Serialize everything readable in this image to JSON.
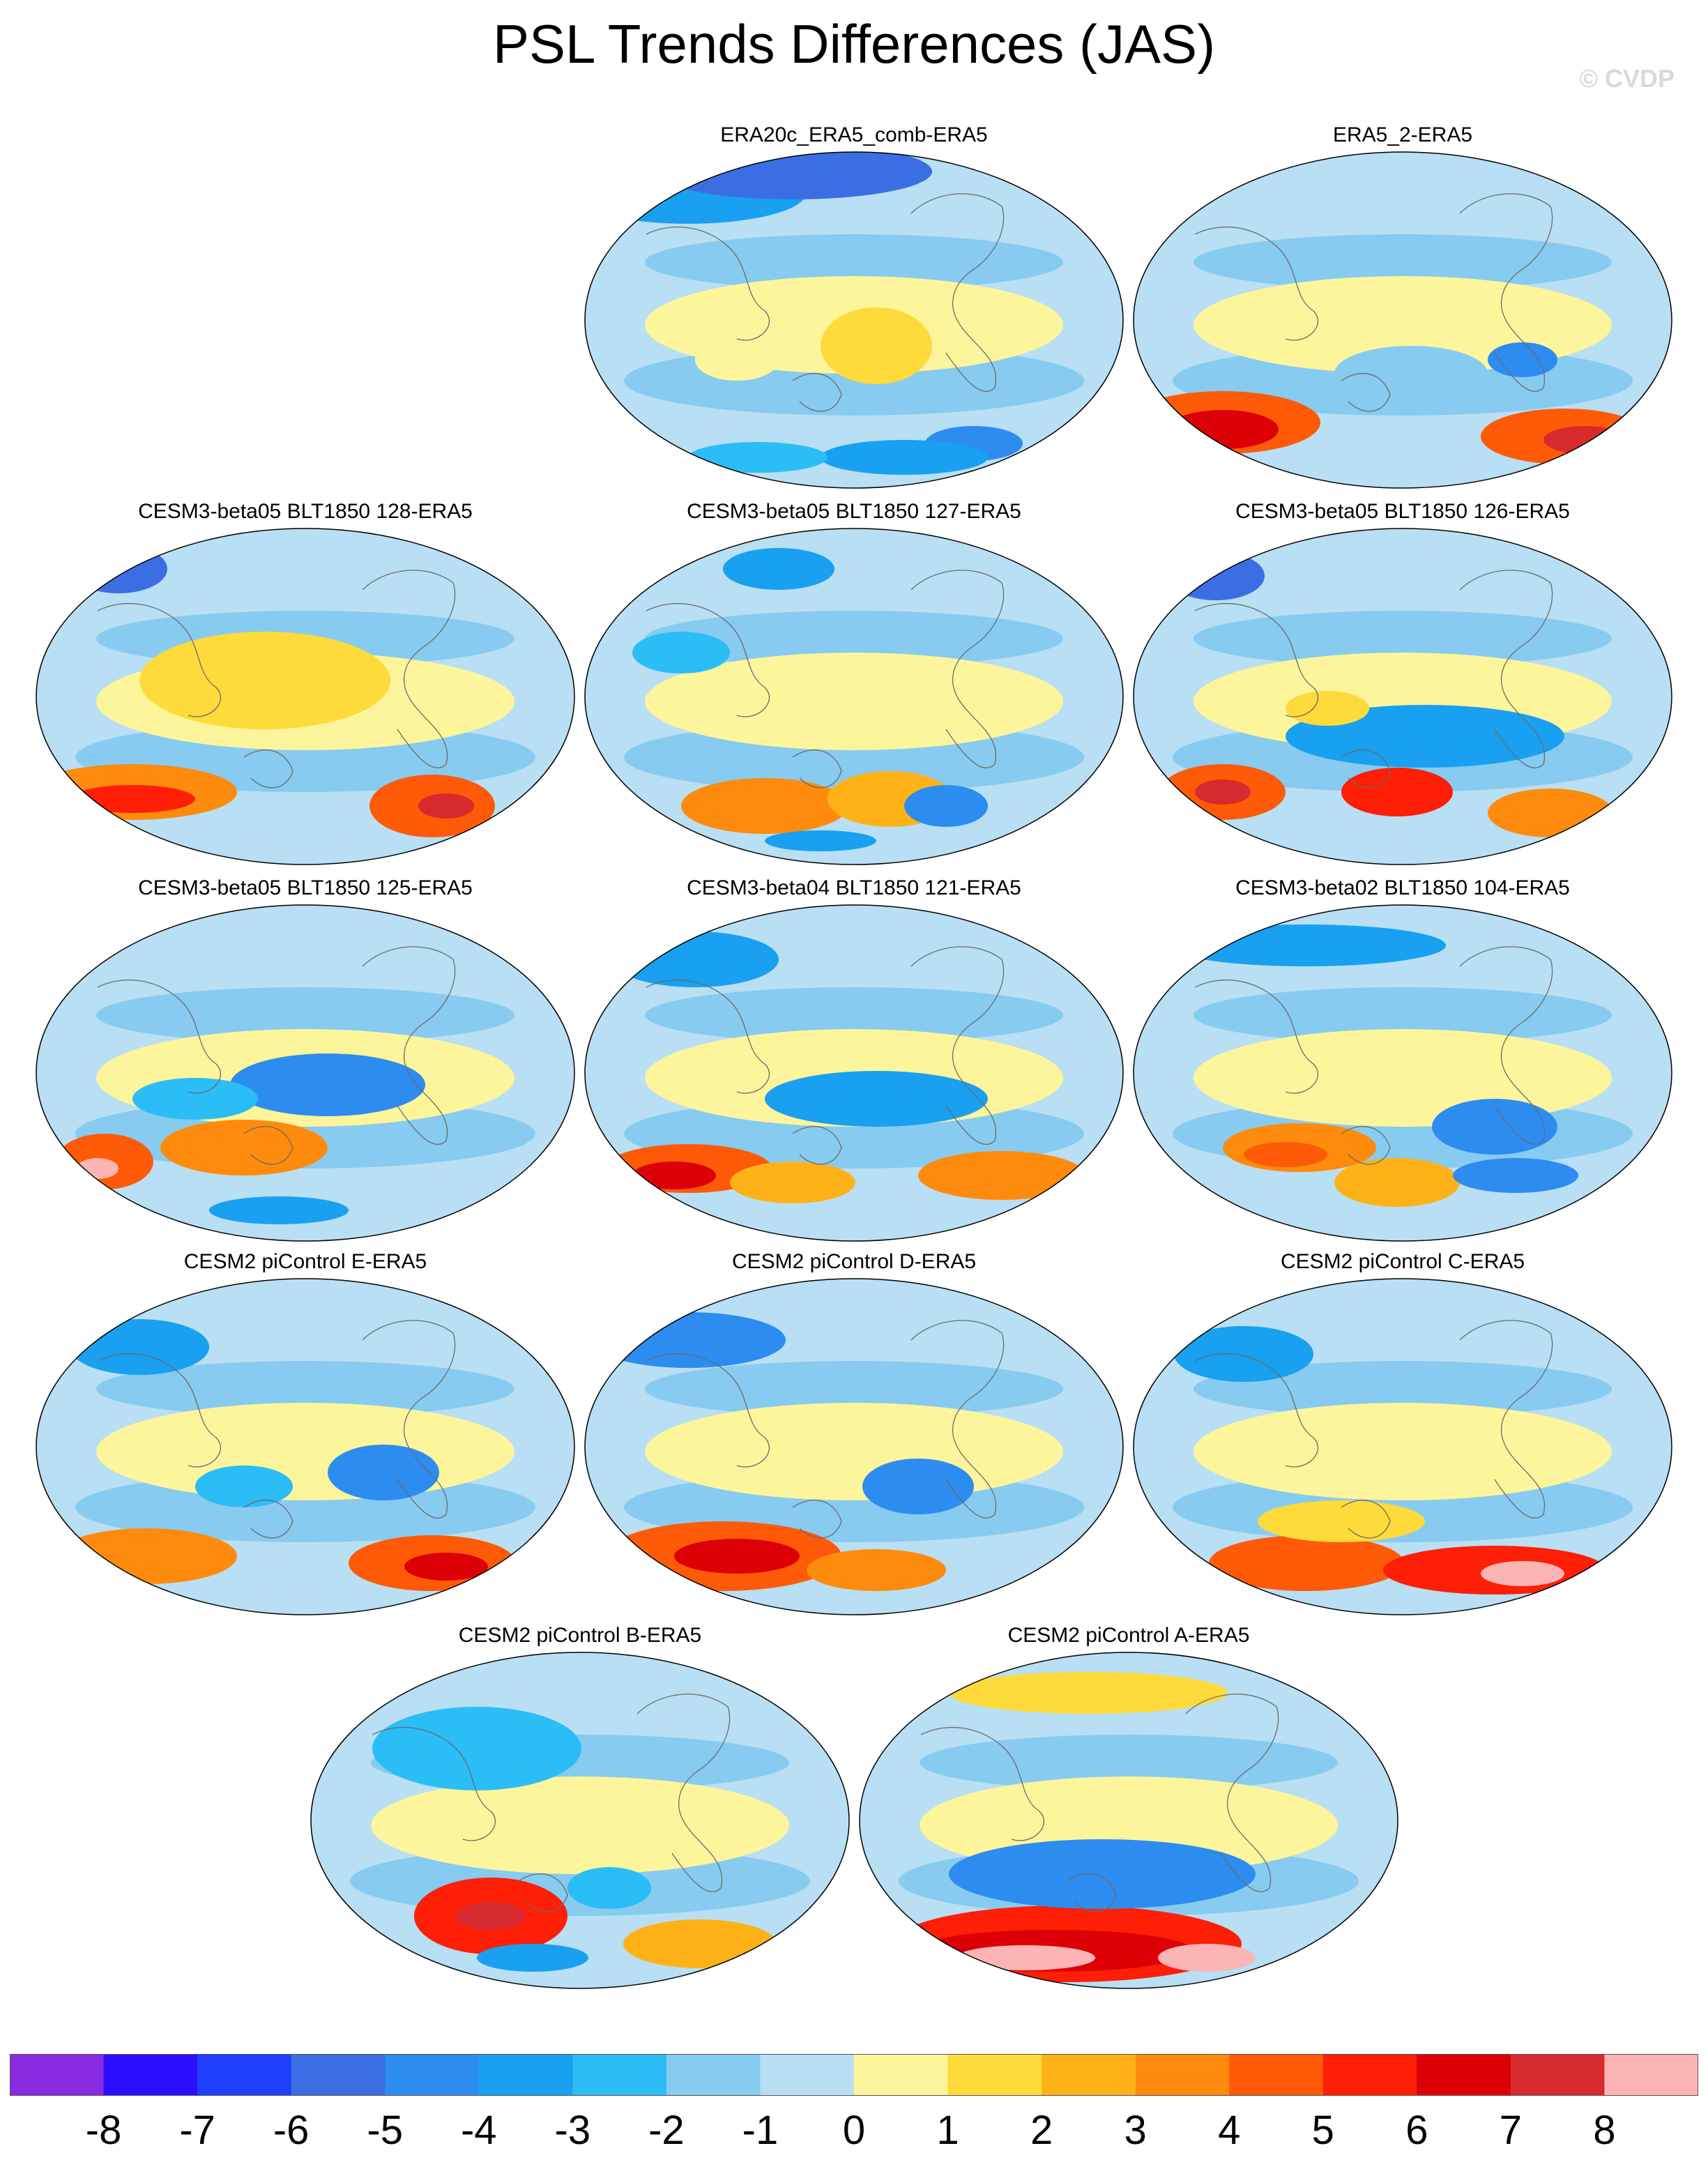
{
  "title": "PSL Trends Differences (JAS)",
  "credit": "© CVDP",
  "panels": [
    {
      "label": "ERA20c_ERA5_comb-ERA5",
      "pattern": "era20c"
    },
    {
      "label": "ERA5_2-ERA5",
      "pattern": "era5_2"
    },
    {
      "label": "CESM3-beta05 BLT1850 128-ERA5",
      "pattern": "b128"
    },
    {
      "label": "CESM3-beta05 BLT1850 127-ERA5",
      "pattern": "b127"
    },
    {
      "label": "CESM3-beta05 BLT1850 126-ERA5",
      "pattern": "b126"
    },
    {
      "label": "CESM3-beta05 BLT1850 125-ERA5",
      "pattern": "b125"
    },
    {
      "label": "CESM3-beta04 BLT1850 121-ERA5",
      "pattern": "b121"
    },
    {
      "label": "CESM3-beta02 BLT1850 104-ERA5",
      "pattern": "b104"
    },
    {
      "label": "CESM2 piControl E-ERA5",
      "pattern": "picE"
    },
    {
      "label": "CESM2 piControl D-ERA5",
      "pattern": "picD"
    },
    {
      "label": "CESM2 piControl C-ERA5",
      "pattern": "picC"
    },
    {
      "label": "CESM2 piControl B-ERA5",
      "pattern": "picB"
    },
    {
      "label": "CESM2 piControl A-ERA5",
      "pattern": "picA"
    }
  ],
  "colorbar": {
    "labels": [
      "-8",
      "-7",
      "-6",
      "-5",
      "-4",
      "-3",
      "-2",
      "-1",
      "0",
      "1",
      "2",
      "3",
      "4",
      "5",
      "6",
      "7",
      "8"
    ],
    "colors": [
      "#8a2be2",
      "#2b0eff",
      "#1f3fff",
      "#3c6ee3",
      "#2d8cf0",
      "#19a0f0",
      "#2bbdf5",
      "#87cbf0",
      "#b8dff3",
      "#fdf59b",
      "#fedb3a",
      "#feb218",
      "#fe8b0d",
      "#ff5a08",
      "#ff1e06",
      "#dd0006",
      "#d72a2e",
      "#fdb4b4"
    ]
  }
}
